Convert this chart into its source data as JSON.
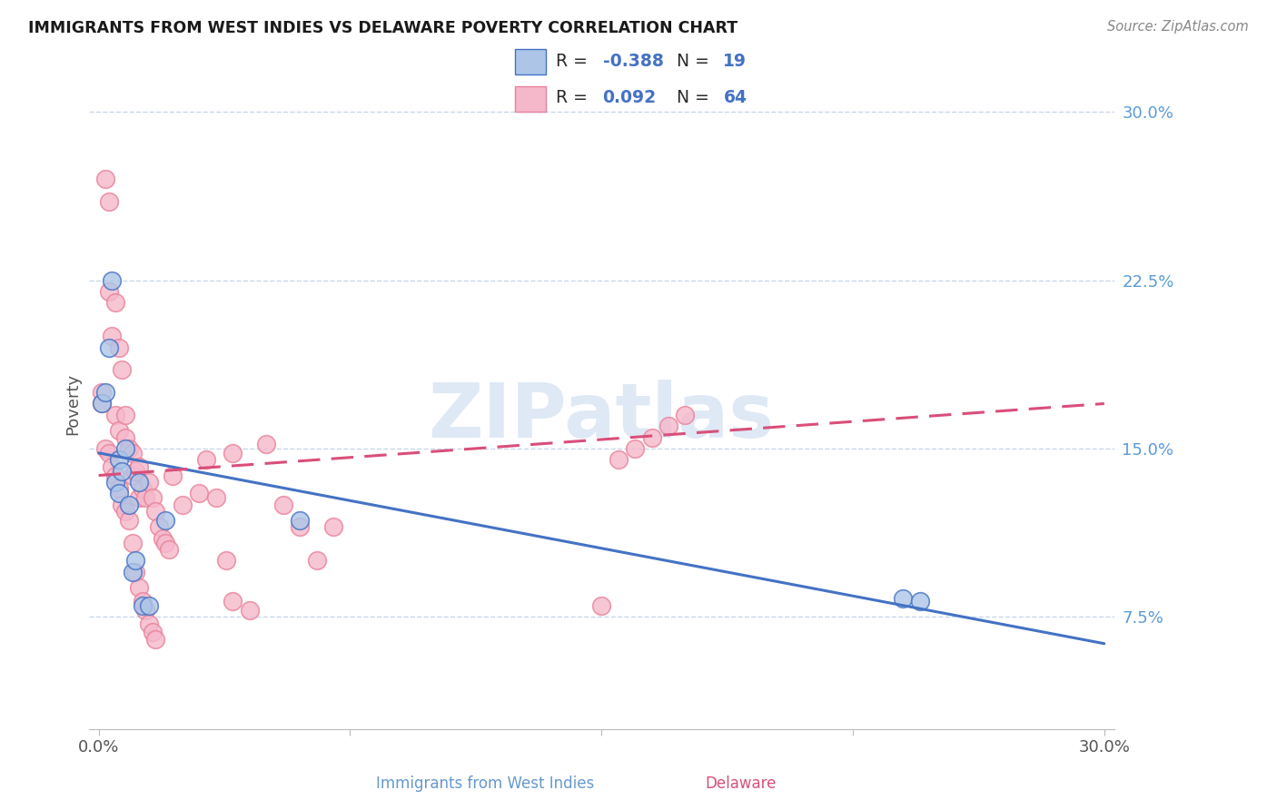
{
  "title": "IMMIGRANTS FROM WEST INDIES VS DELAWARE POVERTY CORRELATION CHART",
  "source": "Source: ZipAtlas.com",
  "ylabel": "Poverty",
  "blue_R": "-0.388",
  "blue_N": "19",
  "pink_R": "0.092",
  "pink_N": "64",
  "blue_color": "#adc6e8",
  "pink_color": "#f5b8cb",
  "blue_edge_color": "#4472c4",
  "pink_edge_color": "#e8829a",
  "blue_line_color": "#4472c4",
  "pink_line_color": "#d94f7a",
  "watermark": "ZIPatlas",
  "legend_text_color": "#4472c4",
  "xlim": [
    -0.003,
    0.303
  ],
  "ylim": [
    0.025,
    0.315
  ],
  "ytick_vals": [
    0.075,
    0.15,
    0.225,
    0.3
  ],
  "ytick_labels": [
    "7.5%",
    "15.0%",
    "22.5%",
    "30.0%"
  ],
  "xtick_vals": [
    0.0,
    0.075,
    0.15,
    0.225,
    0.3
  ],
  "blue_x": [
    0.001,
    0.002,
    0.003,
    0.004,
    0.005,
    0.006,
    0.006,
    0.007,
    0.008,
    0.009,
    0.01,
    0.011,
    0.012,
    0.013,
    0.015,
    0.02,
    0.06,
    0.24,
    0.245
  ],
  "blue_y": [
    0.17,
    0.175,
    0.195,
    0.225,
    0.135,
    0.145,
    0.13,
    0.14,
    0.15,
    0.125,
    0.095,
    0.1,
    0.135,
    0.08,
    0.08,
    0.118,
    0.118,
    0.083,
    0.082
  ],
  "pink_x": [
    0.001,
    0.001,
    0.002,
    0.002,
    0.003,
    0.003,
    0.003,
    0.004,
    0.004,
    0.005,
    0.005,
    0.005,
    0.006,
    0.006,
    0.006,
    0.007,
    0.007,
    0.008,
    0.008,
    0.008,
    0.009,
    0.009,
    0.01,
    0.01,
    0.01,
    0.011,
    0.011,
    0.012,
    0.012,
    0.012,
    0.013,
    0.013,
    0.014,
    0.014,
    0.015,
    0.015,
    0.016,
    0.016,
    0.017,
    0.017,
    0.018,
    0.019,
    0.02,
    0.021,
    0.022,
    0.025,
    0.03,
    0.032,
    0.035,
    0.038,
    0.04,
    0.05,
    0.055,
    0.06,
    0.065,
    0.07,
    0.15,
    0.155,
    0.16,
    0.165,
    0.17,
    0.175,
    0.04,
    0.045
  ],
  "pink_y": [
    0.175,
    0.17,
    0.27,
    0.15,
    0.26,
    0.22,
    0.148,
    0.2,
    0.142,
    0.215,
    0.165,
    0.138,
    0.195,
    0.158,
    0.132,
    0.185,
    0.125,
    0.165,
    0.155,
    0.122,
    0.15,
    0.118,
    0.148,
    0.138,
    0.108,
    0.14,
    0.095,
    0.142,
    0.128,
    0.088,
    0.132,
    0.082,
    0.128,
    0.078,
    0.135,
    0.072,
    0.128,
    0.068,
    0.122,
    0.065,
    0.115,
    0.11,
    0.108,
    0.105,
    0.138,
    0.125,
    0.13,
    0.145,
    0.128,
    0.1,
    0.148,
    0.152,
    0.125,
    0.115,
    0.1,
    0.115,
    0.08,
    0.145,
    0.15,
    0.155,
    0.16,
    0.165,
    0.082,
    0.078
  ]
}
